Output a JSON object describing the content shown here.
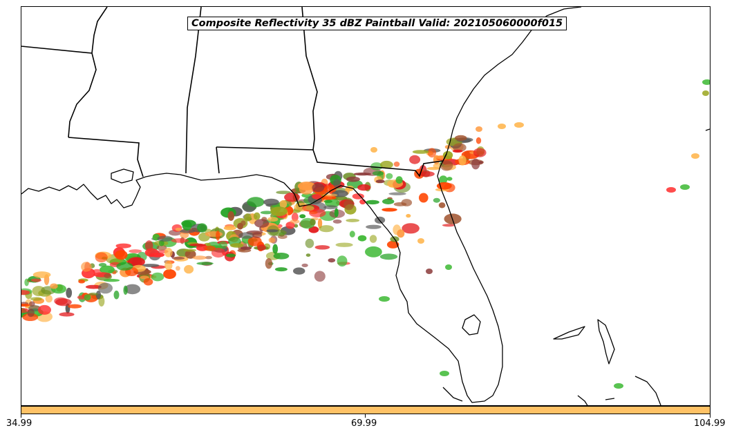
{
  "title": "Composite Reflectivity 35 dBZ Paintball Valid: 202105060000f015",
  "colorbar": {
    "color": "#ffc266",
    "ticks": [
      "34.99",
      "69.99",
      "104.99"
    ]
  },
  "paint_colors": [
    "#ff2d2d",
    "#ff4500",
    "#ff9a40",
    "#ffb347",
    "#a0522d",
    "#8b3a3a",
    "#9aa61f",
    "#6b8e23",
    "#3cb832",
    "#22a122",
    "#5a5a5a",
    "#e31a1c"
  ],
  "icons": [
    "coastline-map",
    "state-border-lines",
    "reflectivity-paintball-blobs"
  ]
}
